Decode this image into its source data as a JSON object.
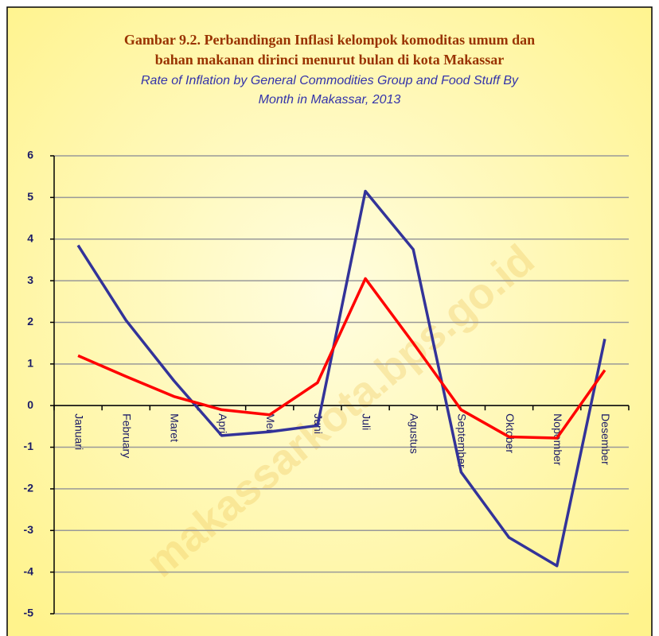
{
  "chart_data": {
    "type": "line",
    "title": [
      "Gambar 9.2. Perbandingan Inflasi kelompok komoditas umum dan",
      "bahan makanan dirinci menurut bulan di kota Makassar"
    ],
    "subtitle": [
      "Rate of Inflation by General Commodities Group and Food Stuff By",
      "Month in Makassar, 2013"
    ],
    "watermark": "makassarkota.bps.go.id",
    "categories": [
      "Januari",
      "February",
      "Maret",
      "April",
      "Mei",
      "Juni",
      "Juli",
      "Agustus",
      "September",
      "Oktober",
      "Nopember",
      "Desember"
    ],
    "series": [
      {
        "color": "#333399",
        "values": [
          3.85,
          2.05,
          0.6,
          -0.72,
          -0.63,
          -0.48,
          5.15,
          3.75,
          -1.6,
          -3.17,
          -3.85,
          1.6
        ]
      },
      {
        "color": "#ff0000",
        "values": [
          1.2,
          0.7,
          0.22,
          -0.1,
          -0.22,
          0.55,
          3.05,
          1.5,
          -0.1,
          -0.75,
          -0.78,
          0.85
        ]
      }
    ],
    "ylim": [
      -5,
      6
    ],
    "yticks": [
      -5,
      -4,
      -3,
      -2,
      -1,
      0,
      1,
      2,
      3,
      4,
      5,
      6
    ],
    "grid": true
  }
}
